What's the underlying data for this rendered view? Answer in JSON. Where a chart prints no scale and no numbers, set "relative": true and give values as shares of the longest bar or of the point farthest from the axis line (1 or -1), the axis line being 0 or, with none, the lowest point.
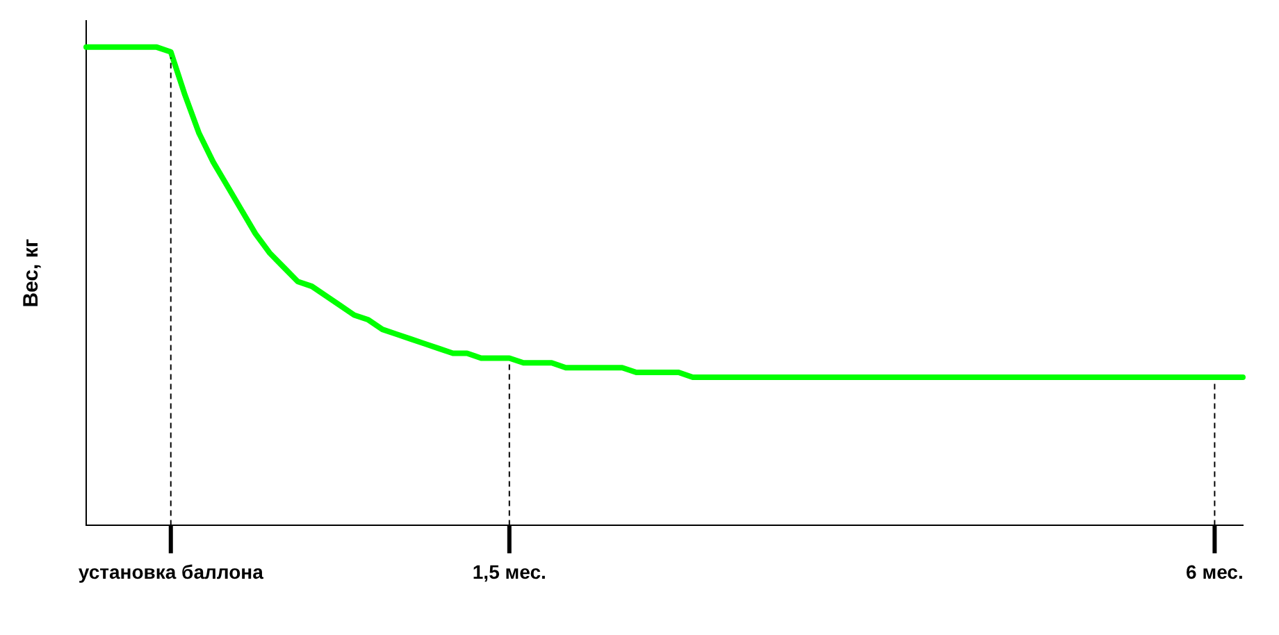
{
  "chart_data": {
    "type": "line",
    "ylabel": "Вес, кг",
    "relative": true,
    "categories": [
      null,
      null,
      null,
      null,
      null,
      null,
      "установка баллона",
      null,
      null,
      null,
      null,
      null,
      null,
      null,
      null,
      null,
      null,
      null,
      null,
      null,
      null,
      null,
      null,
      null,
      null,
      null,
      null,
      null,
      null,
      null,
      "1,5 мес.",
      null,
      null,
      null,
      null,
      null,
      null,
      null,
      null,
      null,
      null,
      null,
      null,
      null,
      null,
      null,
      null,
      null,
      null,
      null,
      null,
      null,
      null,
      null,
      null,
      null,
      null,
      null,
      null,
      null,
      null,
      null,
      null,
      null,
      null,
      null,
      null,
      null,
      null,
      null,
      null,
      null,
      null,
      null,
      null,
      null,
      null,
      null,
      null,
      null,
      "6 мес.",
      null,
      null
    ],
    "series": [
      {
        "color": "#00ff00",
        "values": [
          1,
          1,
          1,
          1,
          1,
          1,
          0.99,
          0.9,
          0.82,
          0.76,
          0.71,
          0.66,
          0.61,
          0.57,
          0.54,
          0.51,
          0.5,
          0.48,
          0.46,
          0.44,
          0.43,
          0.41,
          0.4,
          0.39,
          0.38,
          0.37,
          0.36,
          0.36,
          0.35,
          0.35,
          0.35,
          0.34,
          0.34,
          0.34,
          0.33,
          0.33,
          0.33,
          0.33,
          0.33,
          0.32,
          0.32,
          0.32,
          0.32,
          0.31,
          0.31,
          0.31,
          0.31,
          0.31,
          0.31,
          0.31,
          0.31,
          0.31,
          0.31,
          0.31,
          0.31,
          0.31,
          0.31,
          0.31,
          0.31,
          0.31,
          0.31,
          0.31,
          0.31,
          0.31,
          0.31,
          0.31,
          0.31,
          0.31,
          0.31,
          0.31,
          0.31,
          0.31,
          0.31,
          0.31,
          0.31,
          0.31,
          0.31,
          0.31,
          0.31,
          0.31,
          0.31,
          0.31,
          0.31
        ]
      }
    ],
    "ref_lines": [
      {
        "axis": "x",
        "value": "установка баллона",
        "color": "#000000",
        "line_style": "dashed"
      },
      {
        "axis": "x",
        "value": "1,5 мес.",
        "color": "#000000",
        "line_style": "dashed"
      },
      {
        "axis": "x",
        "value": "6 мес.",
        "color": "#000000",
        "line_style": "dashed"
      }
    ],
    "grid": false,
    "legend": false,
    "marker": "none",
    "line_style": "solid"
  }
}
